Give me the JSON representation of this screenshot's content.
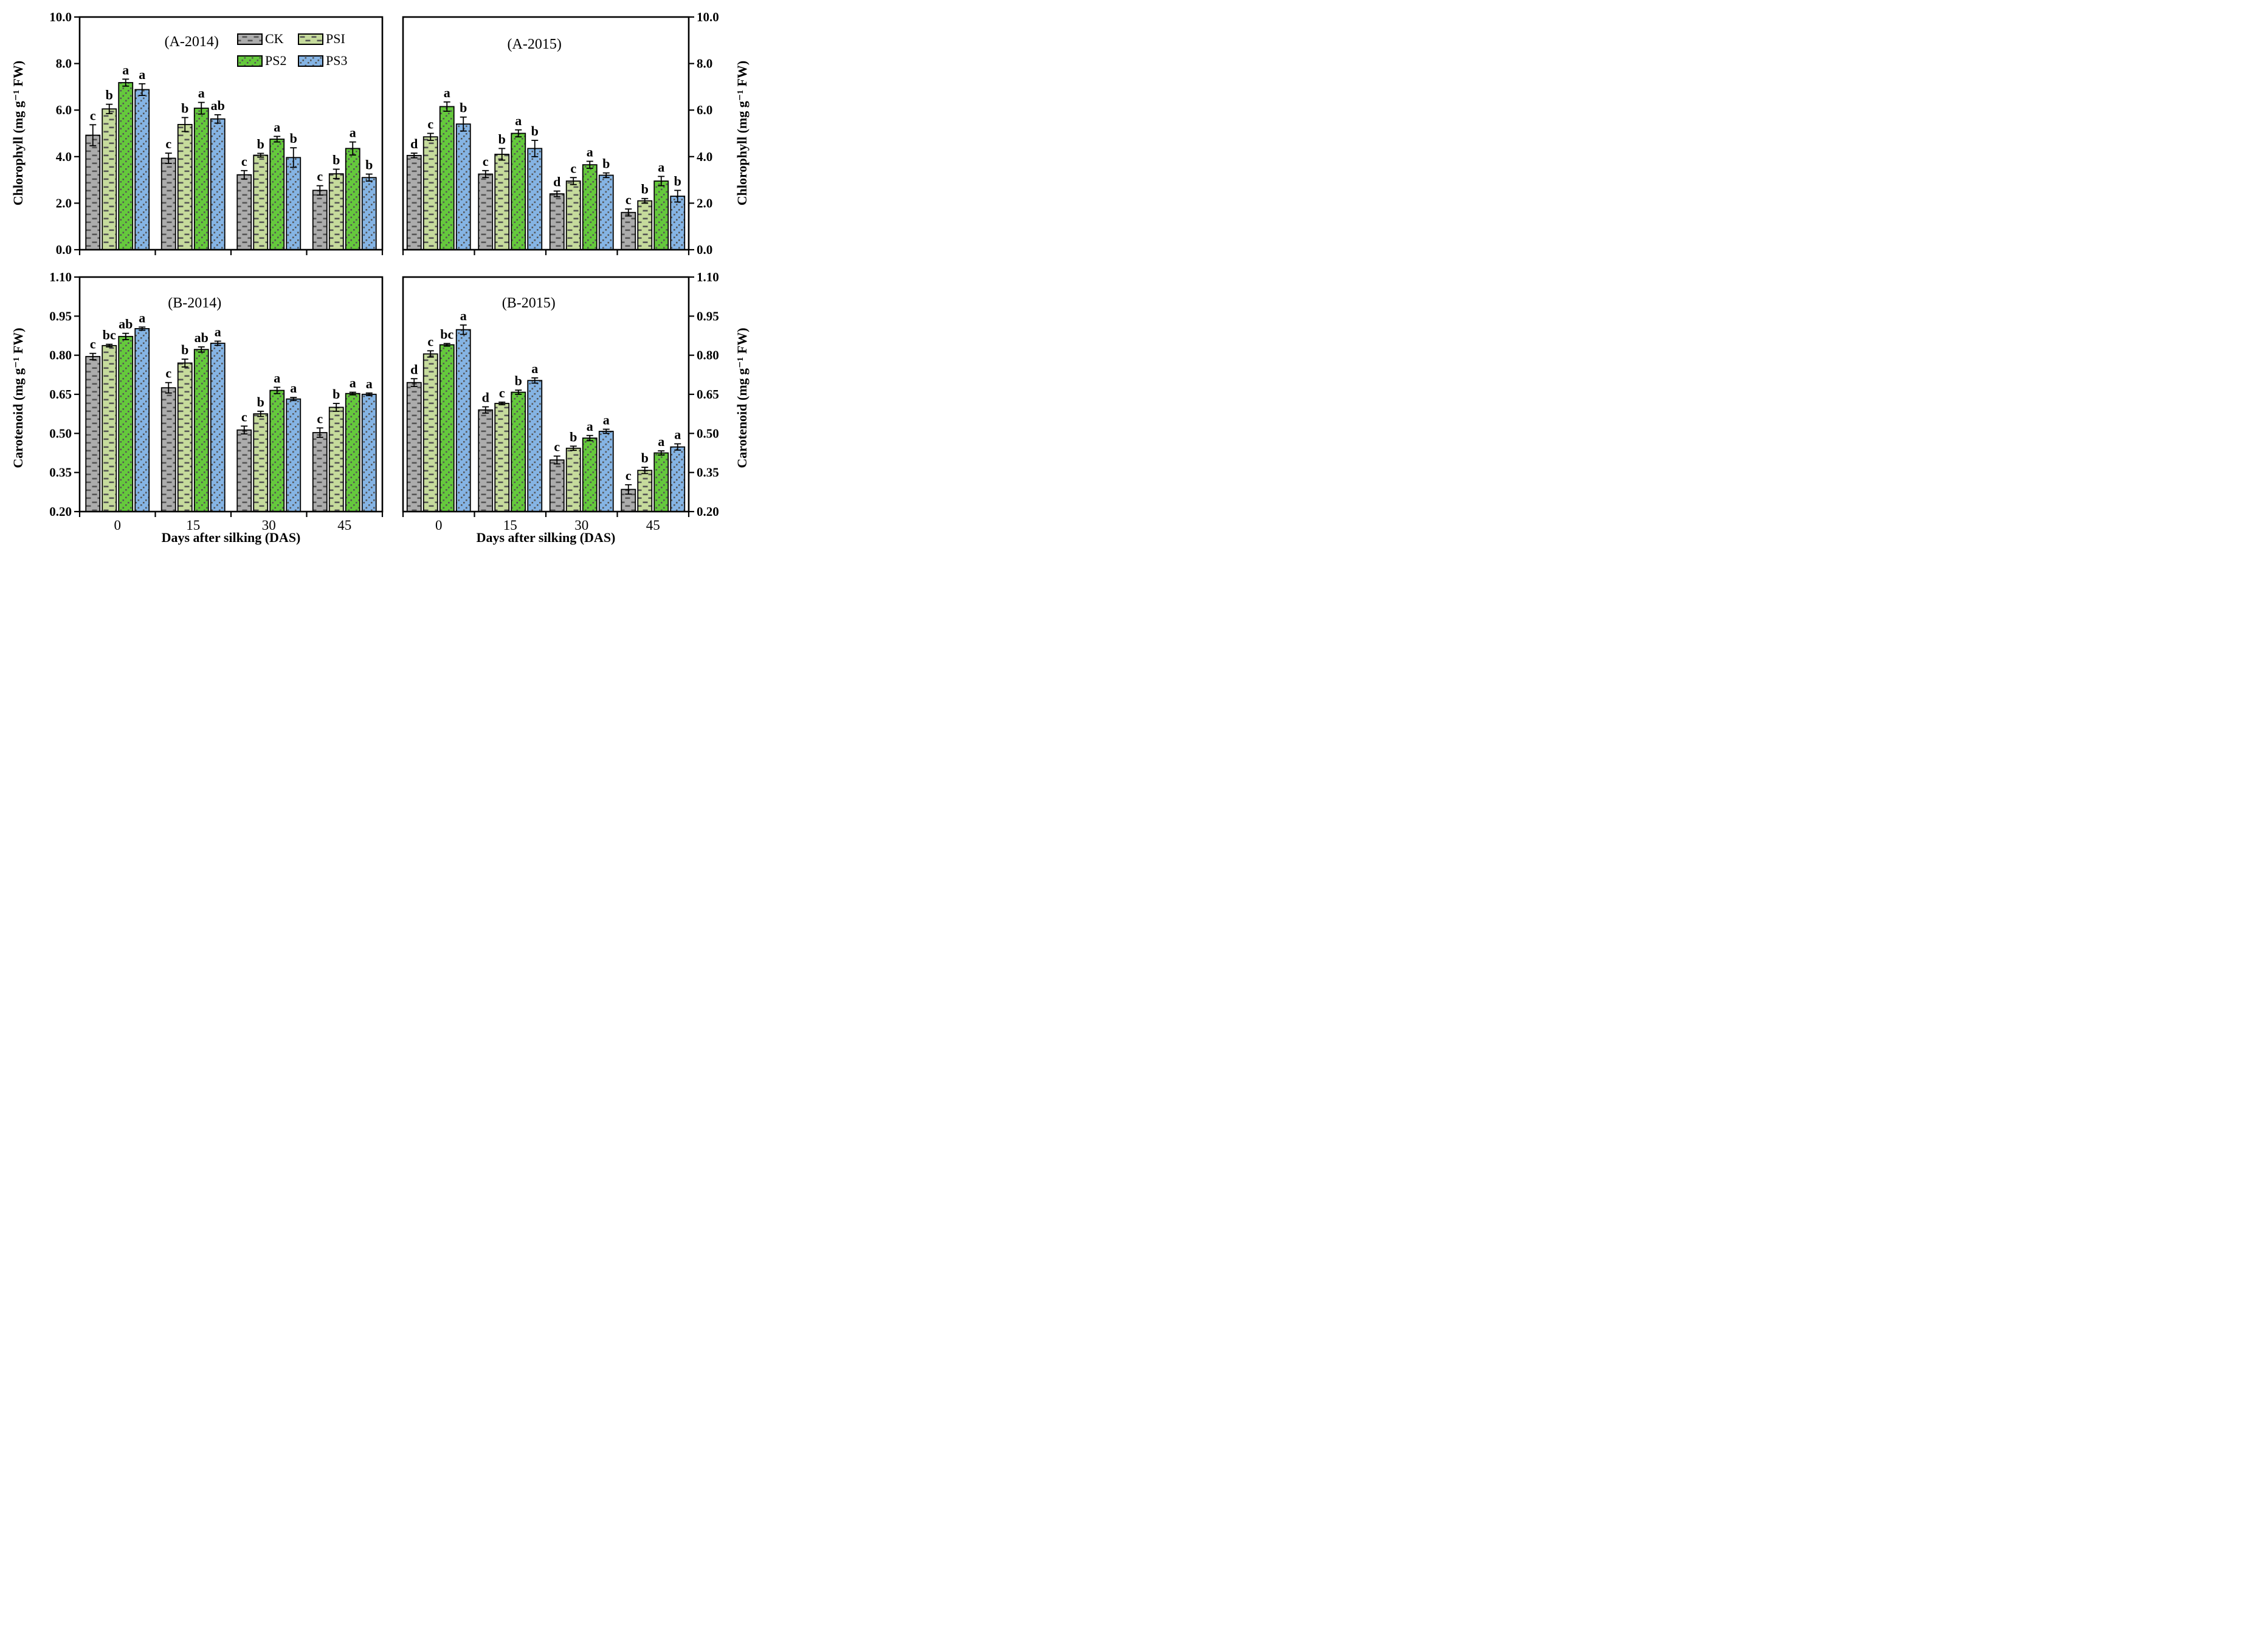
{
  "figure": {
    "xlabel": "Days after silking (DAS)",
    "legend_items": [
      "CK",
      "PSI",
      "PS2",
      "PS3"
    ],
    "colors": {
      "CK": "#ACACAC",
      "PSI": "#C6DB9C",
      "PS2": "#65C93C",
      "PS3": "#85B4E4",
      "pattern_marks": "#555555",
      "axis": "#000000"
    },
    "patterns": {
      "CK": "dash",
      "PSI": "dash",
      "PS2": "dot",
      "PS3": "dot"
    }
  },
  "chart_data": [
    {
      "type": "bar",
      "title": "(A-2014)",
      "ylabel": "Chlorophyll (mg g⁻¹ FW)",
      "xlabel": "Days after silking (DAS)",
      "ylim": [
        0.0,
        10.0
      ],
      "ytick_labels": [
        "0.0",
        "2.0",
        "4.0",
        "6.0",
        "8.0",
        "10.0"
      ],
      "categories": [
        "0",
        "15",
        "30",
        "45"
      ],
      "legend_position": "top-right-inside",
      "series": [
        {
          "name": "CK",
          "values": [
            4.92,
            3.93,
            3.22,
            2.55
          ],
          "errors": [
            0.45,
            0.22,
            0.18,
            0.2
          ],
          "letters": [
            "c",
            "c",
            "c",
            "c"
          ]
        },
        {
          "name": "PSI",
          "values": [
            6.05,
            5.38,
            4.06,
            3.26
          ],
          "errors": [
            0.2,
            0.3,
            0.08,
            0.2
          ],
          "letters": [
            "b",
            "b",
            "b",
            "b"
          ]
        },
        {
          "name": "PS2",
          "values": [
            7.18,
            6.08,
            4.75,
            4.35
          ],
          "errors": [
            0.15,
            0.25,
            0.12,
            0.28
          ],
          "letters": [
            "a",
            "a",
            "a",
            "a"
          ]
        },
        {
          "name": "PS3",
          "values": [
            6.88,
            5.62,
            3.96,
            3.1
          ],
          "errors": [
            0.25,
            0.18,
            0.42,
            0.15
          ],
          "letters": [
            "a",
            "ab",
            "b",
            "b"
          ]
        }
      ]
    },
    {
      "type": "bar",
      "title": "(A-2015)",
      "ylabel": "Chlorophyll (mg g⁻¹ FW)",
      "xlabel": "Days after silking (DAS)",
      "ylim": [
        0.0,
        10.0
      ],
      "ytick_labels": [
        "0.0",
        "2.0",
        "4.0",
        "6.0",
        "8.0",
        "10.0"
      ],
      "categories": [
        "0",
        "15",
        "30",
        "45"
      ],
      "series": [
        {
          "name": "CK",
          "values": [
            4.05,
            3.25,
            2.4,
            1.6
          ],
          "errors": [
            0.1,
            0.15,
            0.12,
            0.15
          ],
          "letters": [
            "d",
            "c",
            "d",
            "c"
          ]
        },
        {
          "name": "PSI",
          "values": [
            4.85,
            4.1,
            2.95,
            2.1
          ],
          "errors": [
            0.15,
            0.25,
            0.15,
            0.1
          ],
          "letters": [
            "c",
            "b",
            "c",
            "b"
          ]
        },
        {
          "name": "PS2",
          "values": [
            6.15,
            5.0,
            3.65,
            2.95
          ],
          "errors": [
            0.2,
            0.15,
            0.15,
            0.2
          ],
          "letters": [
            "a",
            "a",
            "a",
            "a"
          ]
        },
        {
          "name": "PS3",
          "values": [
            5.4,
            4.35,
            3.2,
            2.3
          ],
          "errors": [
            0.3,
            0.35,
            0.1,
            0.25
          ],
          "letters": [
            "b",
            "b",
            "b",
            "b"
          ]
        }
      ]
    },
    {
      "type": "bar",
      "title": "(B-2014)",
      "ylabel": "Carotenoid (mg g⁻¹ FW)",
      "xlabel": "Days after silking (DAS)",
      "ylim": [
        0.2,
        1.1
      ],
      "ytick_labels": [
        "0.20",
        "0.35",
        "0.50",
        "0.65",
        "0.80",
        "0.95",
        "1.10"
      ],
      "categories": [
        "0",
        "15",
        "30",
        "45"
      ],
      "series": [
        {
          "name": "CK",
          "values": [
            0.795,
            0.675,
            0.513,
            0.503
          ],
          "errors": [
            0.012,
            0.02,
            0.015,
            0.018
          ],
          "letters": [
            "c",
            "c",
            "c",
            "c"
          ]
        },
        {
          "name": "PSI",
          "values": [
            0.837,
            0.77,
            0.575,
            0.6
          ],
          "errors": [
            0.005,
            0.015,
            0.01,
            0.015
          ],
          "letters": [
            "bc",
            "b",
            "b",
            "b"
          ]
        },
        {
          "name": "PS2",
          "values": [
            0.872,
            0.822,
            0.665,
            0.653
          ],
          "errors": [
            0.012,
            0.01,
            0.012,
            0.005
          ],
          "letters": [
            "ab",
            "ab",
            "a",
            "a"
          ]
        },
        {
          "name": "PS3",
          "values": [
            0.902,
            0.846,
            0.632,
            0.65
          ],
          "errors": [
            0.006,
            0.008,
            0.006,
            0.005
          ],
          "letters": [
            "a",
            "a",
            "a",
            "a"
          ]
        }
      ]
    },
    {
      "type": "bar",
      "title": "(B-2015)",
      "ylabel": "Carotenoid (mg g⁻¹ FW)",
      "xlabel": "Days after silking (DAS)",
      "ylim": [
        0.2,
        1.1
      ],
      "ytick_labels": [
        "0.20",
        "0.35",
        "0.50",
        "0.65",
        "0.80",
        "0.95",
        "1.10"
      ],
      "categories": [
        "0",
        "15",
        "30",
        "45"
      ],
      "series": [
        {
          "name": "CK",
          "values": [
            0.695,
            0.59,
            0.398,
            0.285
          ],
          "errors": [
            0.015,
            0.012,
            0.015,
            0.018
          ],
          "letters": [
            "d",
            "d",
            "c",
            "c"
          ]
        },
        {
          "name": "PSI",
          "values": [
            0.805,
            0.615,
            0.443,
            0.358
          ],
          "errors": [
            0.012,
            0.005,
            0.008,
            0.012
          ],
          "letters": [
            "c",
            "c",
            "b",
            "b"
          ]
        },
        {
          "name": "PS2",
          "values": [
            0.84,
            0.658,
            0.482,
            0.425
          ],
          "errors": [
            0.005,
            0.008,
            0.01,
            0.008
          ],
          "letters": [
            "bc",
            "b",
            "a",
            "a"
          ]
        },
        {
          "name": "PS3",
          "values": [
            0.898,
            0.703,
            0.508,
            0.448
          ],
          "errors": [
            0.018,
            0.01,
            0.008,
            0.012
          ],
          "letters": [
            "a",
            "a",
            "a",
            "a"
          ]
        }
      ]
    }
  ]
}
